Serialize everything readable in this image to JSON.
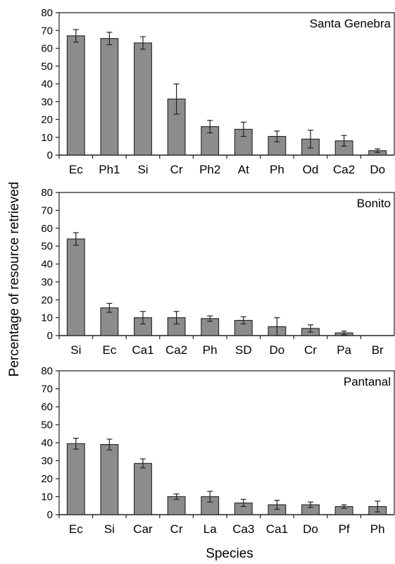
{
  "figure": {
    "ylabel": "Percentage of resource retrieved",
    "xlabel": "Species"
  },
  "chart_data": [
    {
      "type": "bar",
      "title": "Santa Genebra",
      "categories": [
        "Ec",
        "Ph1",
        "Si",
        "Cr",
        "Ph2",
        "At",
        "Ph",
        "Od",
        "Ca2",
        "Do"
      ],
      "values": [
        67,
        65.5,
        63,
        31.5,
        16,
        14.5,
        10.5,
        9,
        8,
        2.5
      ],
      "errors": [
        3.5,
        3.5,
        3.5,
        8.5,
        3.5,
        4,
        3,
        5,
        3,
        1
      ],
      "ylim": [
        0,
        80
      ],
      "yticks": [
        0,
        10,
        20,
        30,
        40,
        50,
        60,
        70,
        80
      ],
      "color": "#8c8c8c"
    },
    {
      "type": "bar",
      "title": "Bonito",
      "categories": [
        "Si",
        "Ec",
        "Ca1",
        "Ca2",
        "Ph",
        "SD",
        "Do",
        "Cr",
        "Pa",
        "Br"
      ],
      "values": [
        54,
        15.5,
        10,
        10,
        9.5,
        8.5,
        5,
        4,
        1.5,
        0
      ],
      "errors": [
        3.5,
        2.5,
        3.5,
        3.5,
        1.5,
        2,
        5,
        2,
        1,
        0
      ],
      "ylim": [
        0,
        80
      ],
      "yticks": [
        0,
        10,
        20,
        30,
        40,
        50,
        60,
        70,
        80
      ],
      "color": "#8c8c8c"
    },
    {
      "type": "bar",
      "title": "Pantanal",
      "categories": [
        "Ec",
        "Si",
        "Car",
        "Cr",
        "La",
        "Ca3",
        "Ca1",
        "Do",
        "Pf",
        "Ph"
      ],
      "values": [
        39.5,
        39,
        28.5,
        10,
        10,
        6.5,
        5.5,
        5.5,
        4.5,
        4.5
      ],
      "errors": [
        3,
        3,
        2.5,
        1.5,
        3,
        2,
        2.5,
        1.5,
        1,
        3
      ],
      "ylim": [
        0,
        80
      ],
      "yticks": [
        0,
        10,
        20,
        30,
        40,
        50,
        60,
        70,
        80
      ],
      "color": "#8c8c8c"
    }
  ]
}
